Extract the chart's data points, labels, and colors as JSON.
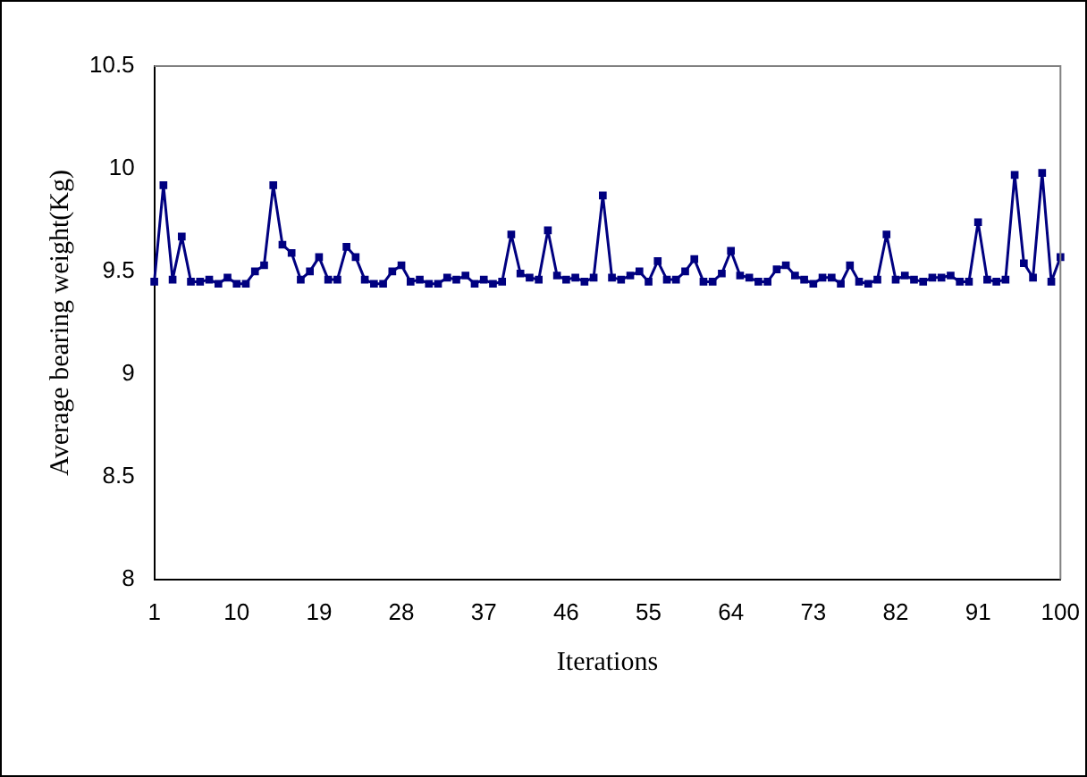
{
  "chart_data": {
    "type": "line",
    "xlabel": "Iterations",
    "ylabel": "Average bearing weight(Kg)",
    "categories": [
      "1",
      null,
      null,
      null,
      null,
      null,
      null,
      null,
      null,
      "10",
      null,
      null,
      null,
      null,
      null,
      null,
      null,
      null,
      "19",
      null,
      null,
      null,
      null,
      null,
      null,
      null,
      null,
      "28",
      null,
      null,
      null,
      null,
      null,
      null,
      null,
      null,
      "37",
      null,
      null,
      null,
      null,
      null,
      null,
      null,
      null,
      "46",
      null,
      null,
      null,
      null,
      null,
      null,
      null,
      null,
      "55",
      null,
      null,
      null,
      null,
      null,
      null,
      null,
      null,
      "64",
      null,
      null,
      null,
      null,
      null,
      null,
      null,
      null,
      "73",
      null,
      null,
      null,
      null,
      null,
      null,
      null,
      null,
      "82",
      null,
      null,
      null,
      null,
      null,
      null,
      null,
      null,
      "91",
      null,
      null,
      null,
      null,
      null,
      null,
      null,
      null,
      "100"
    ],
    "series": [
      {
        "color": "#000080",
        "values": [
          9.45,
          9.92,
          9.46,
          9.67,
          9.45,
          9.45,
          9.46,
          9.44,
          9.47,
          9.44,
          9.44,
          9.5,
          9.53,
          9.92,
          9.63,
          9.59,
          9.46,
          9.5,
          9.57,
          9.46,
          9.46,
          9.62,
          9.57,
          9.46,
          9.44,
          9.44,
          9.5,
          9.53,
          9.45,
          9.46,
          9.44,
          9.44,
          9.47,
          9.46,
          9.48,
          9.44,
          9.46,
          9.44,
          9.45,
          9.68,
          9.49,
          9.47,
          9.46,
          9.7,
          9.48,
          9.46,
          9.47,
          9.45,
          9.47,
          9.87,
          9.47,
          9.46,
          9.48,
          9.5,
          9.45,
          9.55,
          9.46,
          9.46,
          9.5,
          9.56,
          9.45,
          9.45,
          9.49,
          9.6,
          9.48,
          9.47,
          9.45,
          9.45,
          9.51,
          9.53,
          9.48,
          9.46,
          9.44,
          9.47,
          9.47,
          9.44,
          9.53,
          9.45,
          9.44,
          9.46,
          9.68,
          9.46,
          9.48,
          9.46,
          9.45,
          9.47,
          9.47,
          9.48,
          9.45,
          9.45,
          9.74,
          9.46,
          9.45,
          9.46,
          9.97,
          9.54,
          9.47,
          9.98,
          9.45,
          9.57
        ]
      }
    ],
    "ylim": [
      8,
      10.5
    ],
    "yticks": [
      8,
      8.5,
      9,
      9.5,
      10,
      10.5
    ],
    "grid": false,
    "legend": false,
    "marker": "square",
    "line_style": "solid"
  }
}
